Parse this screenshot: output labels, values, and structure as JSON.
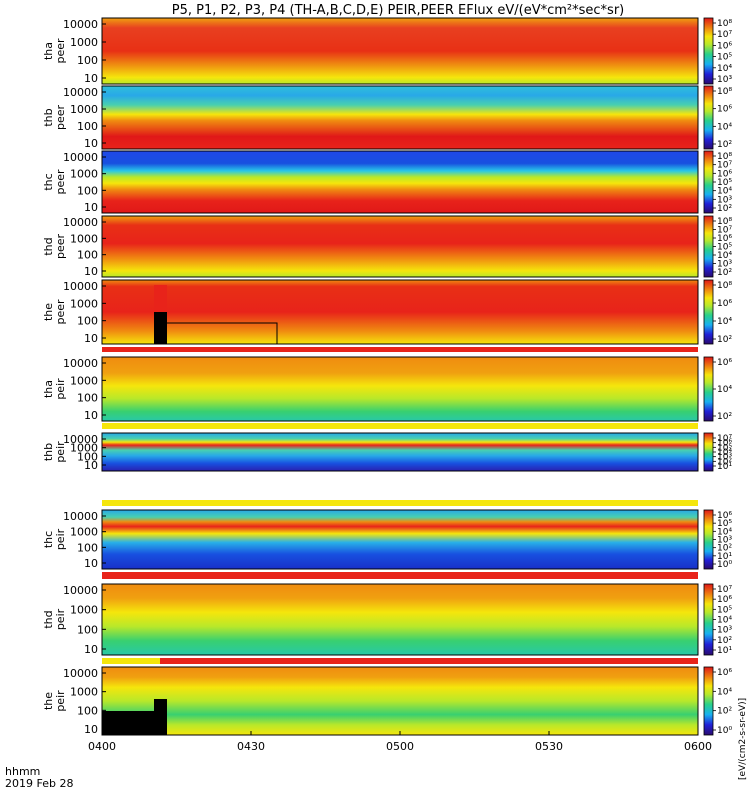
{
  "chart_data": {
    "type": "heatmap",
    "title": "P5, P1, P2, P3, P4 (TH-A,B,C,D,E) PEIR,PEER EFlux eV/(eV*cm²*sec*sr)",
    "x_ticks": [
      "0400",
      "0430",
      "0500",
      "0530",
      "0600"
    ],
    "x_label_row1": "hhmm",
    "x_label_row2": "2019 Feb 28",
    "colorbar_unit": "[eV/(cm2-s-sr-eV)]",
    "panels": [
      {
        "label": "tha peer",
        "y_ticks": [
          "10000",
          "1000",
          "100",
          "10"
        ],
        "cbar_ticks": [
          "10⁸",
          "10⁷",
          "10⁶",
          "10⁵",
          "10⁴",
          "10³"
        ],
        "pattern": "tha_peer"
      },
      {
        "label": "thb peer",
        "y_ticks": [
          "10000",
          "1000",
          "100",
          "10"
        ],
        "cbar_ticks": [
          "10⁸",
          "10⁶",
          "10⁴",
          "10²"
        ],
        "pattern": "thb_peer"
      },
      {
        "label": "thc peer",
        "y_ticks": [
          "10000",
          "1000",
          "100",
          "10"
        ],
        "cbar_ticks": [
          "10⁸",
          "10⁷",
          "10⁶",
          "10⁵",
          "10⁴",
          "10³",
          "10²"
        ],
        "pattern": "thc_peer"
      },
      {
        "label": "thd peer",
        "y_ticks": [
          "10000",
          "1000",
          "100",
          "10"
        ],
        "cbar_ticks": [
          "10⁸",
          "10⁷",
          "10⁶",
          "10⁵",
          "10⁴",
          "10³",
          "10²"
        ],
        "pattern": "thd_peer"
      },
      {
        "label": "the peer",
        "y_ticks": [
          "10000",
          "1000",
          "100",
          "10"
        ],
        "cbar_ticks": [
          "10⁸",
          "10⁶",
          "10⁴",
          "10²"
        ],
        "pattern": "the_peer"
      },
      {
        "label": "tha peir",
        "y_ticks": [
          "10000",
          "1000",
          "100",
          "10"
        ],
        "cbar_ticks": [
          "10⁶",
          "10⁴",
          "10²"
        ],
        "pattern": "tha_peir"
      },
      {
        "label": "thb peir",
        "y_ticks": [
          "10000",
          "1000",
          "100",
          "10"
        ],
        "cbar_ticks": [
          "10⁷",
          "10⁶",
          "10⁵",
          "10⁴",
          "10³",
          "10²",
          "10¹"
        ],
        "pattern": "thb_peir"
      },
      {
        "label": "thc peir",
        "y_ticks": [
          "10000",
          "1000",
          "100",
          "10"
        ],
        "cbar_ticks": [
          "10⁶",
          "10⁵",
          "10⁴",
          "10³",
          "10²",
          "10¹",
          "10⁰"
        ],
        "pattern": "thc_peir"
      },
      {
        "label": "thd peir",
        "y_ticks": [
          "10000",
          "1000",
          "100",
          "10"
        ],
        "cbar_ticks": [
          "10⁷",
          "10⁶",
          "10⁵",
          "10⁴",
          "10³",
          "10²",
          "10¹"
        ],
        "pattern": "thd_peir"
      },
      {
        "label": "the peir",
        "y_ticks": [
          "10000",
          "1000",
          "100",
          "10"
        ],
        "cbar_ticks": [
          "10⁶",
          "10⁴",
          "10²",
          "10⁰"
        ],
        "pattern": "the_peir"
      }
    ]
  }
}
